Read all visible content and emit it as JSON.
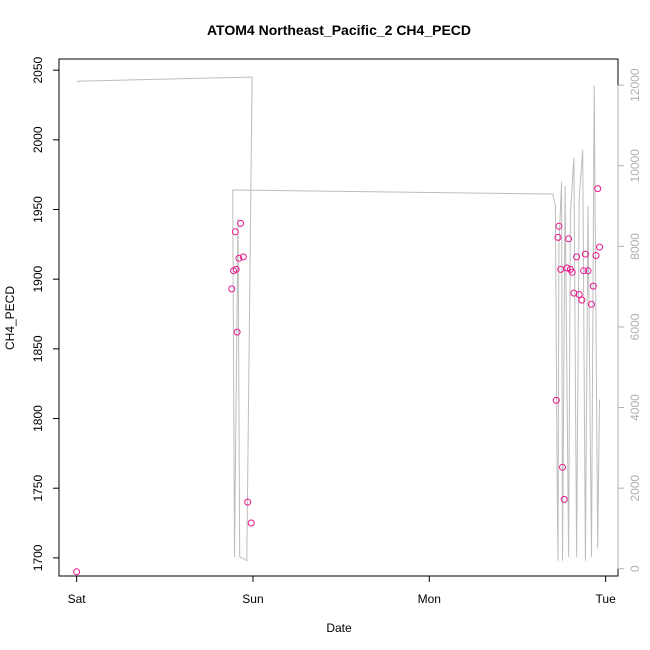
{
  "chart_data": {
    "type": "scatter",
    "title": "ATOM4 Northeast_Pacific_2 CH4_PECD",
    "xlabel": "Date",
    "ylabel": "CH4_PECD",
    "x_unit": "days",
    "xlim": [
      -0.1,
      3.07
    ],
    "ylim": [
      1687,
      2058
    ],
    "y2lim": [
      -180,
      12650
    ],
    "x_ticks": [
      {
        "value": 0,
        "label": "Sat"
      },
      {
        "value": 1,
        "label": "Sun"
      },
      {
        "value": 2,
        "label": "Mon"
      },
      {
        "value": 3,
        "label": "Tue"
      }
    ],
    "y_ticks": [
      1700,
      1750,
      1800,
      1850,
      1900,
      1950,
      2000,
      2050
    ],
    "y2_ticks": [
      0,
      2000,
      4000,
      6000,
      8000,
      10000,
      12000
    ],
    "grid": false,
    "colors": {
      "points": "#e8188c",
      "altitude_line": "#bdbdbd",
      "axis": "#000000",
      "right_axis": "#b0b0b0"
    },
    "series": [
      {
        "role": "points",
        "axis": "left",
        "x": [
          0.0,
          0.88,
          0.89,
          0.9,
          0.905,
          0.91,
          0.92,
          0.93,
          0.945,
          0.97,
          0.99,
          2.72,
          2.73,
          2.735,
          2.745,
          2.755,
          2.765,
          2.78,
          2.79,
          2.8,
          2.81,
          2.82,
          2.835,
          2.85,
          2.865,
          2.875,
          2.885,
          2.9,
          2.92,
          2.93,
          2.945,
          2.955,
          2.965
        ],
        "y": [
          1690,
          1893,
          1906,
          1934,
          1907,
          1862,
          1915,
          1940,
          1916,
          1740,
          1725,
          1813,
          1930,
          1938,
          1907,
          1765,
          1742,
          1908,
          1929,
          1907,
          1905,
          1890,
          1916,
          1889,
          1885,
          1906,
          1918,
          1906,
          1882,
          1895,
          1917,
          1965,
          1923
        ]
      },
      {
        "role": "altitude_line",
        "axis": "right",
        "x": [
          0.0,
          0.98,
          0.995,
          0.965,
          0.925,
          0.915,
          0.895,
          0.885,
          2.7,
          2.715,
          2.725,
          2.73,
          2.735,
          2.75,
          2.755,
          2.77,
          2.79,
          2.8,
          2.82,
          2.835,
          2.85,
          2.87,
          2.885,
          2.9,
          2.92,
          2.935,
          2.955,
          2.965
        ],
        "y": [
          12100,
          12200,
          12200,
          200,
          300,
          8700,
          300,
          9400,
          9300,
          9000,
          2000,
          200,
          8000,
          9600,
          200,
          9500,
          300,
          8800,
          10200,
          300,
          9200,
          10400,
          200,
          9000,
          300,
          12000,
          500,
          4200
        ]
      }
    ]
  }
}
